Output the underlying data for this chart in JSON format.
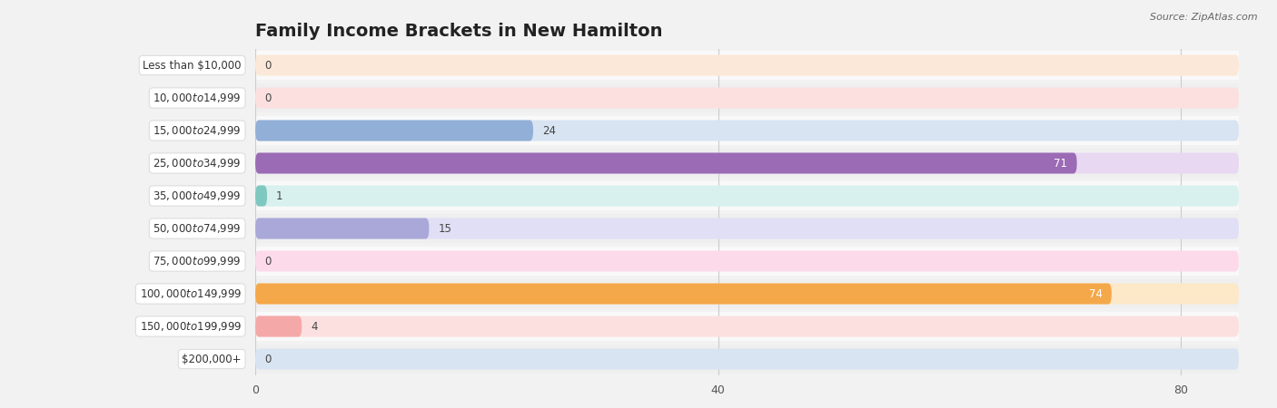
{
  "title": "Family Income Brackets in New Hamilton",
  "source": "Source: ZipAtlas.com",
  "categories": [
    "Less than $10,000",
    "$10,000 to $14,999",
    "$15,000 to $24,999",
    "$25,000 to $34,999",
    "$35,000 to $49,999",
    "$50,000 to $74,999",
    "$75,000 to $99,999",
    "$100,000 to $149,999",
    "$150,000 to $199,999",
    "$200,000+"
  ],
  "values": [
    0,
    0,
    24,
    71,
    1,
    15,
    0,
    74,
    4,
    0
  ],
  "bar_colors": [
    "#f5c9a0",
    "#f5a8a8",
    "#92afd7",
    "#9b6bb5",
    "#7ec8c0",
    "#a9a8d8",
    "#f794b4",
    "#f5a84a",
    "#f5a8a8",
    "#92afd7"
  ],
  "bar_bg_colors": [
    "#fce8d8",
    "#fce0e0",
    "#d8e4f2",
    "#e8d8f2",
    "#d8f0ee",
    "#e0dff5",
    "#fddae9",
    "#fde8c8",
    "#fce0e0",
    "#d8e4f2"
  ],
  "xlim": [
    0,
    85
  ],
  "xticks": [
    0,
    40,
    80
  ],
  "title_fontsize": 14,
  "background_color": "#f2f2f2",
  "row_bg_colors": [
    "#f9f9f9",
    "#efefef"
  ]
}
